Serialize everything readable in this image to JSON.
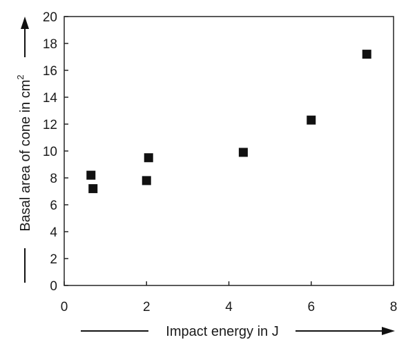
{
  "chart_data": {
    "type": "scatter",
    "xlabel": "Impact energy in J",
    "ylabel_main": "Basal area of cone in cm",
    "ylabel_superscript": "2",
    "xlim": [
      0,
      8
    ],
    "ylim": [
      0,
      20
    ],
    "x_ticks": [
      0,
      2,
      4,
      6,
      8
    ],
    "y_ticks": [
      0,
      2,
      4,
      6,
      8,
      10,
      12,
      14,
      16,
      18,
      20
    ],
    "grid": false,
    "marker": "filled-square",
    "marker_color": "#111111",
    "points": [
      {
        "x": 0.65,
        "y": 8.2
      },
      {
        "x": 0.7,
        "y": 7.2
      },
      {
        "x": 2.0,
        "y": 7.8
      },
      {
        "x": 2.05,
        "y": 9.5
      },
      {
        "x": 4.35,
        "y": 9.9
      },
      {
        "x": 6.0,
        "y": 12.3
      },
      {
        "x": 7.35,
        "y": 17.2
      }
    ]
  }
}
